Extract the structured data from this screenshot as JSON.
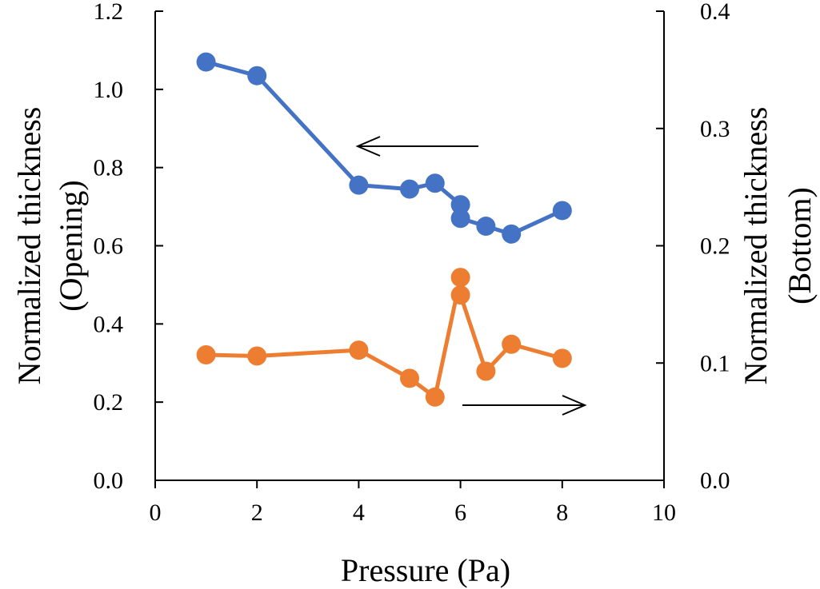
{
  "chart_data": {
    "type": "line",
    "title": "",
    "xlabel": "Pressure (Pa)",
    "ylabel": "Normalized thickness (Opening)",
    "y2label": "Normalized thickness (Bottom)",
    "ylabel_lines": [
      "Normalized thickness",
      "(Opening)"
    ],
    "y2label_lines": [
      "Normalized thickness",
      "(Bottom)"
    ],
    "xlim": [
      0,
      10
    ],
    "ylim": [
      0,
      1.2
    ],
    "y2lim": [
      0,
      0.4
    ],
    "xticks": [
      "0",
      "2",
      "4",
      "6",
      "8",
      "10"
    ],
    "yticks": [
      "0.0",
      "0.2",
      "0.4",
      "0.6",
      "0.8",
      "1.0",
      "1.2"
    ],
    "y2ticks": [
      "0.0",
      "0.1",
      "0.2",
      "0.3",
      "0.4"
    ],
    "grid": false,
    "series": [
      {
        "name": "Opening",
        "axis": "left",
        "color": "#4472C4",
        "x": [
          1,
          2,
          4,
          5,
          5.5,
          6,
          6,
          6.5,
          7,
          8
        ],
        "values": [
          1.07,
          1.035,
          0.755,
          0.745,
          0.76,
          0.705,
          0.67,
          0.65,
          0.63,
          0.69
        ]
      },
      {
        "name": "Bottom",
        "axis": "right",
        "color": "#ED7D31",
        "x": [
          1,
          2,
          4,
          5,
          5.5,
          6,
          6,
          6.5,
          7,
          8
        ],
        "values": [
          0.107,
          0.106,
          0.111,
          0.087,
          0.071,
          0.173,
          0.158,
          0.093,
          0.116,
          0.104
        ]
      }
    ],
    "annotations": [
      {
        "type": "arrow",
        "direction": "left",
        "meaning": "Opening series uses left axis"
      },
      {
        "type": "arrow",
        "direction": "right",
        "meaning": "Bottom series uses right axis"
      }
    ]
  }
}
